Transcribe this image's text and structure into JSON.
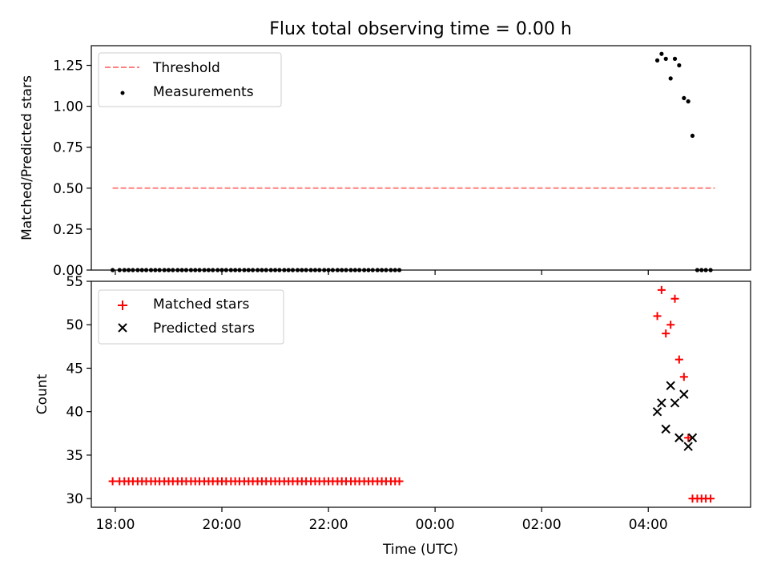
{
  "title": "Flux total observing time = 0.00 h",
  "xlabel": "Time (UTC)",
  "x_ticks": [
    "18:00",
    "20:00",
    "22:00",
    "00:00",
    "02:00",
    "04:00"
  ],
  "x_tick_hours": [
    18,
    20,
    22,
    24,
    26,
    28
  ],
  "x_range_hours": [
    17.55,
    29.92
  ],
  "colors": {
    "threshold": "#ff8080",
    "measurements": "#000000",
    "matched": "#ff0000",
    "predicted": "#000000"
  },
  "chart_data": [
    {
      "type": "scatter",
      "panel": "top",
      "ylabel": "Matched/Predicted stars",
      "ylim": [
        0,
        1.37
      ],
      "y_ticks": [
        "0.00",
        "0.25",
        "0.50",
        "0.75",
        "1.00",
        "1.25"
      ],
      "y_tick_values": [
        0,
        0.25,
        0.5,
        0.75,
        1.0,
        1.25
      ],
      "legend_position": "upper-left",
      "series": [
        {
          "name": "Threshold",
          "kind": "dashed-line",
          "x_hours": [
            17.95,
            29.25
          ],
          "values": [
            0.5,
            0.5
          ]
        },
        {
          "name": "Measurements",
          "kind": "points",
          "x_hours": [
            17.95,
            18.08,
            18.17,
            18.25,
            18.33,
            18.42,
            18.5,
            18.58,
            18.67,
            18.75,
            18.83,
            18.92,
            19.0,
            19.08,
            19.17,
            19.25,
            19.33,
            19.42,
            19.5,
            19.58,
            19.67,
            19.75,
            19.83,
            19.92,
            20.0,
            20.08,
            20.17,
            20.25,
            20.33,
            20.42,
            20.5,
            20.58,
            20.67,
            20.75,
            20.83,
            20.92,
            21.0,
            21.08,
            21.17,
            21.25,
            21.33,
            21.42,
            21.5,
            21.58,
            21.67,
            21.75,
            21.83,
            21.92,
            22.0,
            22.08,
            22.17,
            22.25,
            22.33,
            22.42,
            22.5,
            22.58,
            22.67,
            22.75,
            22.83,
            22.92,
            23.0,
            23.08,
            23.17,
            23.25,
            23.33,
            28.17,
            28.25,
            28.33,
            28.42,
            28.5,
            28.58,
            28.67,
            28.75,
            28.83,
            28.92,
            29.0,
            29.08,
            29.17
          ],
          "values": [
            0,
            0,
            0,
            0,
            0,
            0,
            0,
            0,
            0,
            0,
            0,
            0,
            0,
            0,
            0,
            0,
            0,
            0,
            0,
            0,
            0,
            0,
            0,
            0,
            0,
            0,
            0,
            0,
            0,
            0,
            0,
            0,
            0,
            0,
            0,
            0,
            0,
            0,
            0,
            0,
            0,
            0,
            0,
            0,
            0,
            0,
            0,
            0,
            0,
            0,
            0,
            0,
            0,
            0,
            0,
            0,
            0,
            0,
            0,
            0,
            0,
            0,
            0,
            0,
            0,
            1.28,
            1.32,
            1.29,
            1.17,
            1.29,
            1.25,
            1.05,
            1.03,
            0.82,
            0,
            0,
            0,
            0
          ]
        }
      ]
    },
    {
      "type": "scatter",
      "panel": "bottom",
      "ylabel": "Count",
      "ylim": [
        29,
        55
      ],
      "y_ticks": [
        "30",
        "35",
        "40",
        "45",
        "50",
        "55"
      ],
      "y_tick_values": [
        30,
        35,
        40,
        45,
        50,
        55
      ],
      "legend_position": "upper-left",
      "series": [
        {
          "name": "Matched stars",
          "kind": "plus",
          "x_hours": [
            17.95,
            18.08,
            18.17,
            18.25,
            18.33,
            18.42,
            18.5,
            18.58,
            18.67,
            18.75,
            18.83,
            18.92,
            19.0,
            19.08,
            19.17,
            19.25,
            19.33,
            19.42,
            19.5,
            19.58,
            19.67,
            19.75,
            19.83,
            19.92,
            20.0,
            20.08,
            20.17,
            20.25,
            20.33,
            20.42,
            20.5,
            20.58,
            20.67,
            20.75,
            20.83,
            20.92,
            21.0,
            21.08,
            21.17,
            21.25,
            21.33,
            21.42,
            21.5,
            21.58,
            21.67,
            21.75,
            21.83,
            21.92,
            22.0,
            22.08,
            22.17,
            22.25,
            22.33,
            22.42,
            22.5,
            22.58,
            22.67,
            22.75,
            22.83,
            22.92,
            23.0,
            23.08,
            23.17,
            23.25,
            23.33,
            28.17,
            28.25,
            28.33,
            28.42,
            28.5,
            28.58,
            28.67,
            28.75,
            28.83,
            28.92,
            29.0,
            29.08,
            29.17
          ],
          "values": [
            32,
            32,
            32,
            32,
            32,
            32,
            32,
            32,
            32,
            32,
            32,
            32,
            32,
            32,
            32,
            32,
            32,
            32,
            32,
            32,
            32,
            32,
            32,
            32,
            32,
            32,
            32,
            32,
            32,
            32,
            32,
            32,
            32,
            32,
            32,
            32,
            32,
            32,
            32,
            32,
            32,
            32,
            32,
            32,
            32,
            32,
            32,
            32,
            32,
            32,
            32,
            32,
            32,
            32,
            32,
            32,
            32,
            32,
            32,
            32,
            32,
            32,
            32,
            32,
            32,
            51,
            54,
            49,
            50,
            53,
            46,
            44,
            37,
            30,
            30,
            30,
            30,
            30
          ]
        },
        {
          "name": "Predicted stars",
          "kind": "x",
          "x_hours": [
            28.17,
            28.25,
            28.33,
            28.42,
            28.5,
            28.58,
            28.67,
            28.75,
            28.83
          ],
          "values": [
            40,
            41,
            38,
            43,
            41,
            37,
            42,
            36,
            37
          ]
        }
      ]
    }
  ]
}
